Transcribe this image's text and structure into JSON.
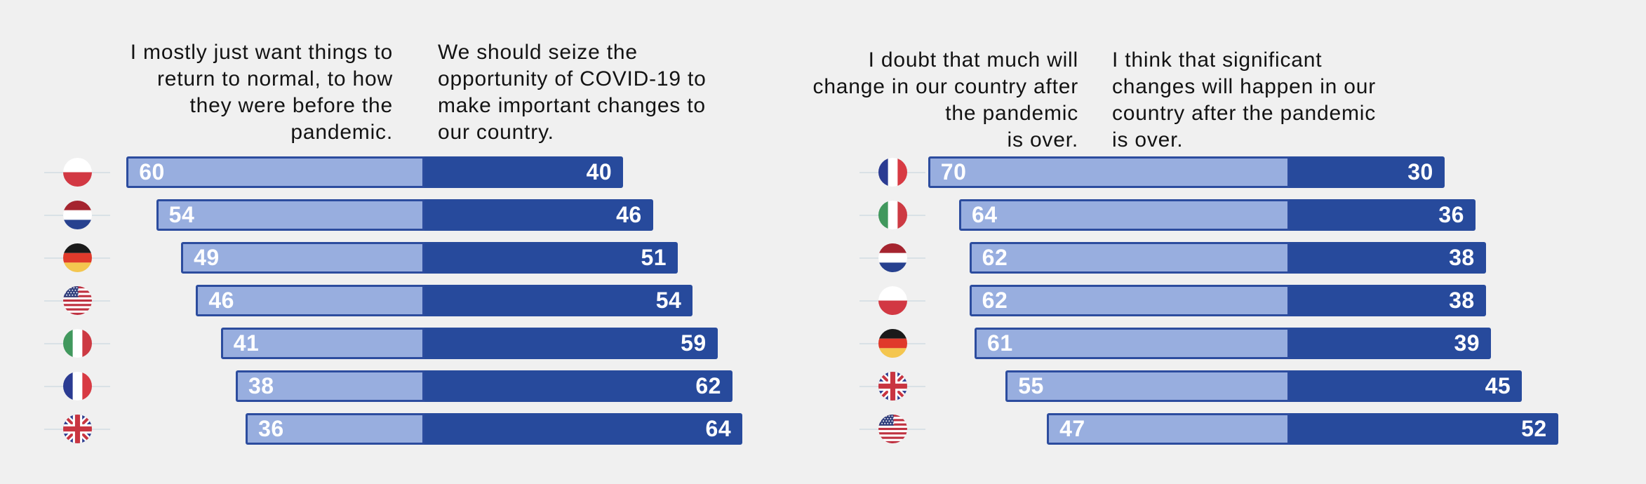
{
  "background": "#f0f0f0",
  "colors": {
    "bar_light": "#98aedf",
    "bar_dark": "#274a9c",
    "bar_border": "#2c4c9e",
    "statement_text": "#131313",
    "value_text": "#ffffff",
    "flag_guideline": "#d9e1e6"
  },
  "chart_data": [
    {
      "type": "bar",
      "variant": "diverging-stacked-horizontal",
      "unit": "percent",
      "left_statement": "I mostly just want things to\nreturn to normal, to how\nthey were before the\npandemic.",
      "right_statement": "We should seize the\nopportunity of COVID-19 to\nmake important changes to\nour country.",
      "legend": {
        "left_color": "#98aedf",
        "right_color": "#274a9c"
      },
      "rows": [
        {
          "country": "Poland",
          "flag_icon": "poland-flag",
          "left_value": 60,
          "right_value": 40
        },
        {
          "country": "Netherlands",
          "flag_icon": "netherlands-flag",
          "left_value": 54,
          "right_value": 46
        },
        {
          "country": "Germany",
          "flag_icon": "germany-flag",
          "left_value": 49,
          "right_value": 51
        },
        {
          "country": "United States",
          "flag_icon": "usa-flag",
          "left_value": 46,
          "right_value": 54
        },
        {
          "country": "Italy",
          "flag_icon": "italy-flag",
          "left_value": 41,
          "right_value": 59
        },
        {
          "country": "France",
          "flag_icon": "france-flag",
          "left_value": 38,
          "right_value": 62
        },
        {
          "country": "United Kingdom",
          "flag_icon": "uk-flag",
          "left_value": 36,
          "right_value": 64
        }
      ]
    },
    {
      "type": "bar",
      "variant": "diverging-stacked-horizontal",
      "unit": "percent",
      "left_statement": "I doubt that much will\nchange in our country after\nthe pandemic\nis over.",
      "right_statement": "I think that significant\nchanges will happen in our\ncountry after the pandemic\nis over.",
      "legend": {
        "left_color": "#98aedf",
        "right_color": "#274a9c"
      },
      "rows": [
        {
          "country": "France",
          "flag_icon": "france-flag",
          "left_value": 70,
          "right_value": 30
        },
        {
          "country": "Italy",
          "flag_icon": "italy-flag",
          "left_value": 64,
          "right_value": 36
        },
        {
          "country": "Netherlands",
          "flag_icon": "netherlands-flag",
          "left_value": 62,
          "right_value": 38
        },
        {
          "country": "Poland",
          "flag_icon": "poland-flag",
          "left_value": 62,
          "right_value": 38
        },
        {
          "country": "Germany",
          "flag_icon": "germany-flag",
          "left_value": 61,
          "right_value": 39
        },
        {
          "country": "United Kingdom",
          "flag_icon": "uk-flag",
          "left_value": 55,
          "right_value": 45
        },
        {
          "country": "United States",
          "flag_icon": "usa-flag",
          "left_value": 47,
          "right_value": 52
        }
      ]
    }
  ]
}
